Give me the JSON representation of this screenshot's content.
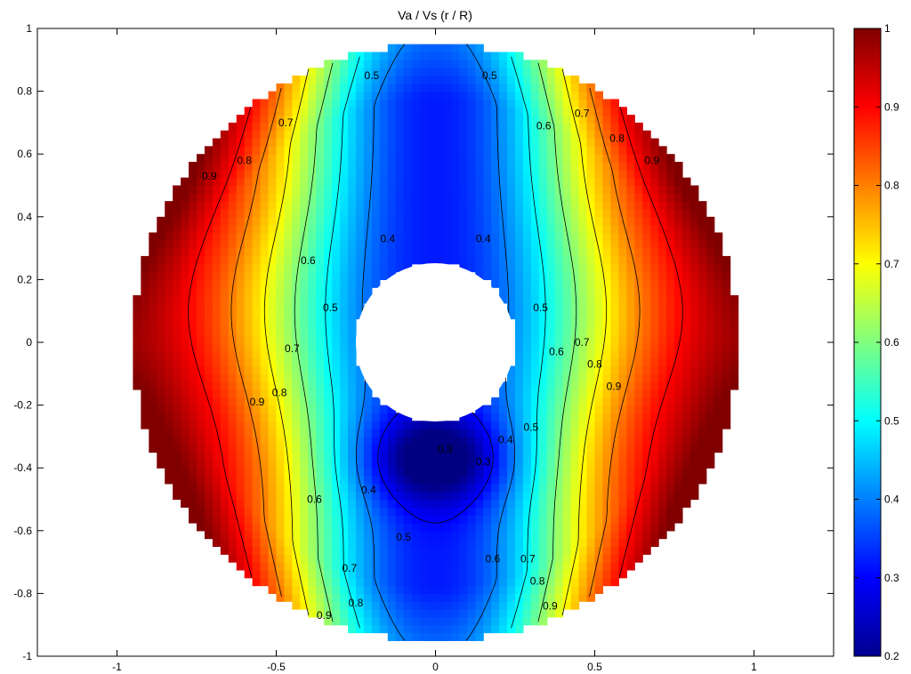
{
  "chart_data": {
    "type": "heatmap",
    "title": "Va / Vs (r / R)",
    "xlabel": "",
    "ylabel": "",
    "xlim": [
      -1.25,
      1.25
    ],
    "ylim": [
      -1,
      1
    ],
    "x_ticks": [
      "-1",
      "-0.5",
      "0",
      "0.5",
      "1"
    ],
    "y_ticks": [
      "-1",
      "-0.8",
      "-0.6",
      "-0.4",
      "-0.2",
      "0",
      "0.2",
      "0.4",
      "0.6",
      "0.8",
      "1"
    ],
    "colorbar": {
      "colormap": "jet",
      "range": [
        0.2,
        1
      ],
      "ticks": [
        "0.2",
        "0.3",
        "0.4",
        "0.5",
        "0.6",
        "0.7",
        "0.8",
        "0.9",
        "1"
      ]
    },
    "domain": {
      "shape": "annulus",
      "inner_radius": 0.25,
      "outer_radius": 0.95
    },
    "contour_levels": [
      0.3,
      0.4,
      0.5,
      0.6,
      0.7,
      0.8,
      0.9
    ],
    "contour_labels": [
      {
        "text": "0.5",
        "x": -0.2,
        "y": 0.85,
        "level": 0.5
      },
      {
        "text": "0.5",
        "x": 0.17,
        "y": 0.85,
        "level": 0.5
      },
      {
        "text": "0.7",
        "x": -0.47,
        "y": 0.7,
        "level": 0.7
      },
      {
        "text": "0.7",
        "x": 0.46,
        "y": 0.73,
        "level": 0.7
      },
      {
        "text": "0.6",
        "x": 0.34,
        "y": 0.69,
        "level": 0.6
      },
      {
        "text": "0.8",
        "x": -0.6,
        "y": 0.58,
        "level": 0.8
      },
      {
        "text": "0.8",
        "x": 0.57,
        "y": 0.65,
        "level": 0.8
      },
      {
        "text": "0.9",
        "x": -0.71,
        "y": 0.53,
        "level": 0.9
      },
      {
        "text": "0.9",
        "x": 0.68,
        "y": 0.58,
        "level": 0.9
      },
      {
        "text": "0.4",
        "x": -0.15,
        "y": 0.33,
        "level": 0.4
      },
      {
        "text": "0.4",
        "x": 0.15,
        "y": 0.33,
        "level": 0.4
      },
      {
        "text": "0.6",
        "x": -0.4,
        "y": 0.26,
        "level": 0.6
      },
      {
        "text": "0.5",
        "x": -0.33,
        "y": 0.11,
        "level": 0.5
      },
      {
        "text": "0.5",
        "x": 0.33,
        "y": 0.11,
        "level": 0.5
      },
      {
        "text": "0.7",
        "x": -0.45,
        "y": -0.02,
        "level": 0.7
      },
      {
        "text": "0.7",
        "x": 0.46,
        "y": 0.0,
        "level": 0.7
      },
      {
        "text": "0.6",
        "x": 0.38,
        "y": -0.03,
        "level": 0.6
      },
      {
        "text": "0.8",
        "x": 0.5,
        "y": -0.07,
        "level": 0.8
      },
      {
        "text": "0.9",
        "x": 0.56,
        "y": -0.14,
        "level": 0.9
      },
      {
        "text": "0.8",
        "x": -0.49,
        "y": -0.16,
        "level": 0.8
      },
      {
        "text": "0.9",
        "x": -0.56,
        "y": -0.19,
        "level": 0.9
      },
      {
        "text": "0.5",
        "x": 0.3,
        "y": -0.27,
        "level": 0.5
      },
      {
        "text": "0.4",
        "x": 0.22,
        "y": -0.31,
        "level": 0.4
      },
      {
        "text": "0.3",
        "x": 0.15,
        "y": -0.38,
        "level": 0.3
      },
      {
        "text": "0.3",
        "x": 0.03,
        "y": -0.34,
        "level": 0.3
      },
      {
        "text": "0.4",
        "x": -0.21,
        "y": -0.47,
        "level": 0.4
      },
      {
        "text": "0.6",
        "x": -0.38,
        "y": -0.5,
        "level": 0.6
      },
      {
        "text": "0.5",
        "x": -0.1,
        "y": -0.62,
        "level": 0.5
      },
      {
        "text": "0.6",
        "x": 0.18,
        "y": -0.69,
        "level": 0.6
      },
      {
        "text": "0.7",
        "x": 0.29,
        "y": -0.69,
        "level": 0.7
      },
      {
        "text": "0.7",
        "x": -0.27,
        "y": -0.72,
        "level": 0.7
      },
      {
        "text": "0.8",
        "x": 0.32,
        "y": -0.76,
        "level": 0.8
      },
      {
        "text": "0.8",
        "x": -0.25,
        "y": -0.83,
        "level": 0.8
      },
      {
        "text": "0.9",
        "x": 0.36,
        "y": -0.84,
        "level": 0.9
      },
      {
        "text": "0.9",
        "x": -0.35,
        "y": -0.87,
        "level": 0.9
      }
    ]
  }
}
